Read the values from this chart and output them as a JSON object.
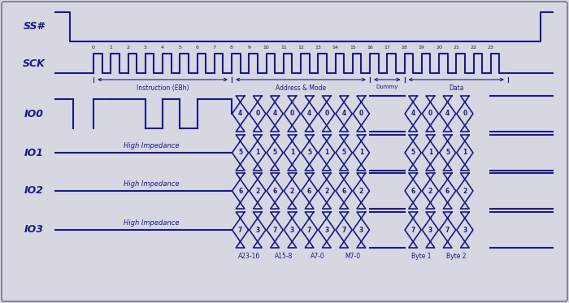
{
  "bg_color": "#d5d8e0",
  "line_color": "#1a1a8c",
  "line_width": 1.5,
  "fig_width": 7.0,
  "fig_height": 3.73,
  "io0_data_addr": [
    "4",
    "0",
    "4",
    "0",
    "4",
    "0",
    "4",
    "0"
  ],
  "io0_data_out": [
    "4",
    "0",
    "4",
    "0"
  ],
  "io1_data_addr": [
    "5",
    "1",
    "5",
    "1",
    "5",
    "1",
    "5",
    "1"
  ],
  "io1_data_out": [
    "5",
    "1",
    "5",
    "1"
  ],
  "io2_data_addr": [
    "6",
    "2",
    "6",
    "2",
    "6",
    "2",
    "6",
    "2"
  ],
  "io2_data_out": [
    "6",
    "2",
    "6",
    "2"
  ],
  "io3_data_addr": [
    "7",
    "3",
    "7",
    "3",
    "7",
    "3",
    "7",
    "3"
  ],
  "io3_data_out": [
    "7",
    "3",
    "7",
    "3"
  ],
  "addr_labels": [
    "A23-16",
    "A15-8",
    "A7-0",
    "M7-0"
  ],
  "data_labels": [
    "Byte 1",
    "Byte 2"
  ],
  "instr_bits": [
    1,
    1,
    1,
    0,
    1,
    0,
    1,
    1
  ]
}
